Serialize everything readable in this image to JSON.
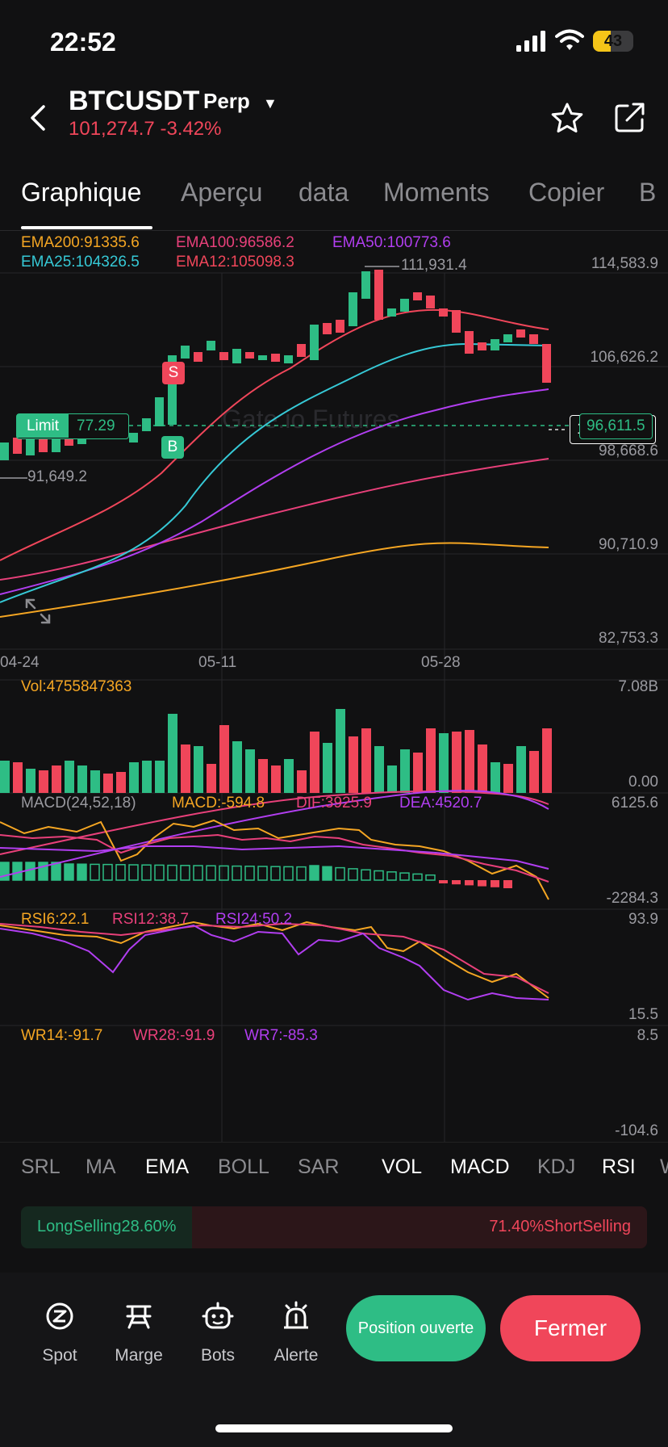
{
  "status_bar": {
    "time": "22:52",
    "battery": "43",
    "battery_level": 0.43
  },
  "header": {
    "symbol": "BTCUSDT",
    "contract": "Perp",
    "price": "101,274.7",
    "change": "-3.42%",
    "icons": [
      "back-icon",
      "star-icon",
      "share-icon"
    ]
  },
  "tabs": [
    "Graphique",
    "Aperçu",
    "data",
    "Moments",
    "Copier",
    "B"
  ],
  "active_tab": "Graphique",
  "colors": {
    "up": "#2ebd85",
    "down": "#f0465a",
    "ema200": "#f5a623",
    "ema100": "#e8407a",
    "ema50": "#b13ef0",
    "ema25": "#36c9d6",
    "ema12": "#f0465a"
  },
  "main_chart": {
    "ema_legend": [
      {
        "label": "EMA200:91335.6",
        "color": "#f5a623"
      },
      {
        "label": "EMA100:96586.2",
        "color": "#e8407a"
      },
      {
        "label": "EMA50:100773.6",
        "color": "#b13ef0"
      },
      {
        "label": "EMA25:104326.5",
        "color": "#36c9d6"
      },
      {
        "label": "EMA12:105098.3",
        "color": "#f0465a"
      }
    ],
    "price_axis": [
      "114,583.9",
      "106,626.2",
      "98,668.6",
      "90,710.9",
      "82,753.3"
    ],
    "date_axis": [
      "04-24",
      "05-11",
      "05-28"
    ],
    "high_label": "111,931.4",
    "low_label": "91,649.2",
    "current_price_tag": "101,274.7",
    "limit_label": "Limit",
    "limit_value": "77.29",
    "limit_price_tag": "96,611.5",
    "sell_marker": "S",
    "buy_marker": "B",
    "watermark": "Gate.io Futures"
  },
  "volume": {
    "label": "Vol:4755847363",
    "axis_max": "7.08B",
    "axis_min": "0.00"
  },
  "macd": {
    "title": "MACD(24,52,18)",
    "macd": "MACD:-594.8",
    "dif": "DIF:3925.9",
    "dea": "DEA:4520.7",
    "axis_max": "6125.6",
    "axis_min": "-2284.3"
  },
  "rsi": {
    "rsi6": "RSI6:22.1",
    "rsi12": "RSI12:38.7",
    "rsi24": "RSI24:50.2",
    "axis_max": "93.9",
    "axis_min": "15.5"
  },
  "wr": {
    "wr14": "WR14:-91.7",
    "wr28": "WR28:-91.9",
    "wr7": "WR7:-85.3",
    "axis_max": "8.5",
    "axis_min": "-104.6"
  },
  "indicator_tabs": [
    "SRL",
    "MA",
    "EMA",
    "BOLL",
    "SAR",
    "VOL",
    "MACD",
    "KDJ",
    "RSI",
    "W"
  ],
  "indicator_active": [
    "EMA",
    "VOL",
    "MACD",
    "RSI"
  ],
  "long_short": {
    "long": "LongSelling28.60%",
    "short": "71.40%ShortSelling",
    "long_pct": 28.6
  },
  "bottom_nav": [
    {
      "label": "Spot",
      "icon": "spot-icon"
    },
    {
      "label": "Marge",
      "icon": "margin-icon"
    },
    {
      "label": "Bots",
      "icon": "bot-icon"
    },
    {
      "label": "Alerte",
      "icon": "alert-icon"
    }
  ],
  "actions": {
    "open": "Position ouverte",
    "close": "Fermer"
  }
}
